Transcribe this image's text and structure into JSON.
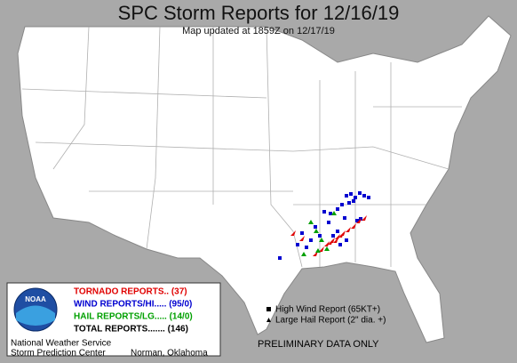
{
  "header": {
    "title": "SPC Storm Reports for 12/16/19",
    "subtitle": "Map updated at 1859Z on 12/17/19"
  },
  "legend": {
    "tornado": "TORNADO REPORTS.. (37)",
    "wind": "WIND REPORTS/HI..... (95/0)",
    "hail": "HAIL REPORTS/LG..... (14/0)",
    "total": "TOTAL REPORTS....... (146)"
  },
  "logo": "NOAA",
  "symbols": {
    "wind": "High Wind Report (65KT+)",
    "hail": "Large Hail Report (2\" dia. +)"
  },
  "note": "PRELIMINARY DATA ONLY",
  "footer": {
    "agency": "National Weather Service",
    "center": "Storm Prediction Center",
    "location": "Norman, Oklahoma"
  }
}
